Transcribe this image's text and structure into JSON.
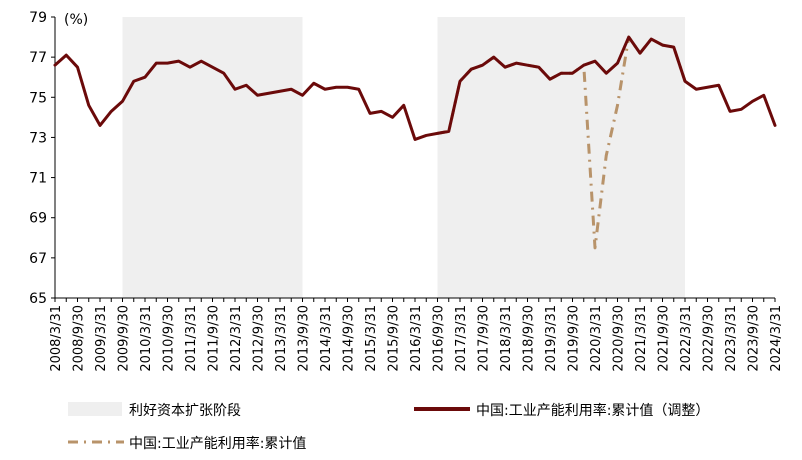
{
  "chart_data": {
    "type": "line",
    "unit_label": "(%)",
    "ylim": [
      65,
      79
    ],
    "yticks": [
      65,
      67,
      69,
      71,
      73,
      75,
      77,
      79
    ],
    "grid": false,
    "legend_position": "bottom",
    "xtick_labels": [
      "2008/3/31",
      "2008/9/30",
      "2009/3/31",
      "2009/9/30",
      "2010/3/31",
      "2010/9/30",
      "2011/3/31",
      "2011/9/30",
      "2012/3/31",
      "2012/9/30",
      "2013/3/31",
      "2013/9/30",
      "2014/3/31",
      "2014/9/30",
      "2015/3/31",
      "2015/9/30",
      "2016/3/31",
      "2016/9/30",
      "2017/3/31",
      "2017/9/30",
      "2018/3/31",
      "2018/9/30",
      "2019/3/31",
      "2019/9/30",
      "2020/3/31",
      "2020/9/30",
      "2021/3/31",
      "2021/9/30",
      "2022/3/31",
      "2022/9/30",
      "2023/3/31",
      "2023/9/30",
      "2024/3/31"
    ],
    "shaded_regions": [
      {
        "name": "利好资本扩张阶段",
        "start": "2009/9/30",
        "end": "2013/9/30",
        "color": "#efefef"
      },
      {
        "name": "利好资本扩张阶段",
        "start": "2016/9/30",
        "end": "2022/3/31",
        "color": "#efefef"
      }
    ],
    "series": [
      {
        "name": "中国:工业产能利用率:累计值（调整）",
        "color": "#6b0a0a",
        "style": "solid",
        "x": [
          "2008/3/31",
          "2008/6/30",
          "2008/9/30",
          "2008/12/31",
          "2009/3/31",
          "2009/6/30",
          "2009/9/30",
          "2009/12/31",
          "2010/3/31",
          "2010/6/30",
          "2010/9/30",
          "2010/12/31",
          "2011/3/31",
          "2011/6/30",
          "2011/9/30",
          "2011/12/31",
          "2012/3/31",
          "2012/6/30",
          "2012/9/30",
          "2012/12/31",
          "2013/3/31",
          "2013/6/30",
          "2013/9/30",
          "2013/12/31",
          "2014/3/31",
          "2014/6/30",
          "2014/9/30",
          "2014/12/31",
          "2015/3/31",
          "2015/6/30",
          "2015/9/30",
          "2015/12/31",
          "2016/3/31",
          "2016/6/30",
          "2016/9/30",
          "2016/12/31",
          "2017/3/31",
          "2017/6/30",
          "2017/9/30",
          "2017/12/31",
          "2018/3/31",
          "2018/6/30",
          "2018/9/30",
          "2018/12/31",
          "2019/3/31",
          "2019/6/30",
          "2019/9/30",
          "2019/12/31",
          "2020/3/31",
          "2020/6/30",
          "2020/9/30",
          "2020/12/31",
          "2021/3/31",
          "2021/6/30",
          "2021/9/30",
          "2021/12/31",
          "2022/3/31",
          "2022/6/30",
          "2022/9/30",
          "2022/12/31",
          "2023/3/31",
          "2023/6/30",
          "2023/9/30",
          "2023/12/31",
          "2024/3/31"
        ],
        "values": [
          76.6,
          77.1,
          76.5,
          74.6,
          73.6,
          74.3,
          74.8,
          75.8,
          76.0,
          76.7,
          76.7,
          76.8,
          76.5,
          76.8,
          76.5,
          76.2,
          75.4,
          75.6,
          75.1,
          75.2,
          75.3,
          75.4,
          75.1,
          75.7,
          75.4,
          75.5,
          75.5,
          75.4,
          74.2,
          74.3,
          74.0,
          74.6,
          72.9,
          73.1,
          73.2,
          73.3,
          75.8,
          76.4,
          76.6,
          77.0,
          76.5,
          76.7,
          76.6,
          76.5,
          75.9,
          76.2,
          76.2,
          76.6,
          76.8,
          76.2,
          76.7,
          78.0,
          77.2,
          77.9,
          77.6,
          77.5,
          75.8,
          75.4,
          75.5,
          75.6,
          74.3,
          74.4,
          74.8,
          75.1,
          73.6
        ]
      },
      {
        "name": "中国:工业产能利用率:累计值",
        "color": "#b8936a",
        "style": "dashdot",
        "x": [
          "2016/9/30",
          "2016/12/31",
          "2017/3/31",
          "2017/6/30",
          "2017/9/30",
          "2017/12/31",
          "2018/3/31",
          "2018/6/30",
          "2018/9/30",
          "2018/12/31",
          "2019/3/31",
          "2019/6/30",
          "2019/9/30",
          "2019/12/31",
          "2020/3/31",
          "2020/6/30",
          "2020/9/30",
          "2020/12/31",
          "2021/3/31",
          "2021/6/30",
          "2021/9/30",
          "2021/12/31",
          "2022/3/31"
        ],
        "values": [
          73.2,
          73.3,
          75.8,
          76.4,
          76.6,
          77.0,
          76.5,
          76.7,
          76.6,
          76.5,
          75.9,
          76.2,
          76.2,
          76.6,
          67.5,
          72.1,
          74.6,
          78.0,
          77.2,
          77.9,
          77.6,
          77.5,
          75.8
        ]
      }
    ]
  }
}
